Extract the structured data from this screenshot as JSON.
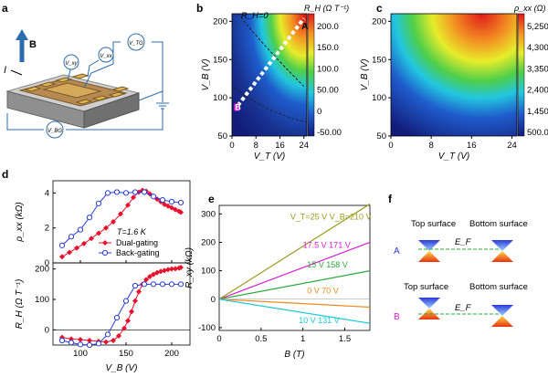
{
  "panel_labels": [
    "a",
    "b",
    "c",
    "d",
    "e",
    "f"
  ],
  "panel_a": {
    "b_label": "B",
    "i_label": "I",
    "meters": [
      "V_xy",
      "V_xx",
      "V_TG",
      "V_BG"
    ]
  },
  "chart_data": [
    {
      "id": "b",
      "type": "heatmap",
      "xlabel": "V_T (V)",
      "ylabel": "V_B (V)",
      "xlim": [
        0,
        25
      ],
      "ylim": [
        50,
        210
      ],
      "xticks": [
        0,
        8,
        16,
        24
      ],
      "yticks": [
        50,
        100,
        150,
        200
      ],
      "colorbar": {
        "label": "R_H (Ω T⁻¹)",
        "ticks": [
          "200.0",
          "150.0",
          "100.0",
          "50.00",
          "0",
          "-50.00"
        ],
        "range": [
          -50,
          220
        ],
        "colors": [
          "#131c7a",
          "#1f5ccc",
          "#22c7e0",
          "#4fcf4a",
          "#e8ec2a",
          "#f39222",
          "#e01a1a"
        ]
      },
      "annotations": {
        "contour_label": "R_H=0",
        "point_a": "A",
        "point_b": "B",
        "path": [
          [
            2,
            90
          ],
          [
            24,
            204
          ]
        ]
      }
    },
    {
      "id": "c",
      "type": "heatmap",
      "xlabel": "V_T (V)",
      "ylabel": "V_B (V)",
      "xlim": [
        0,
        25
      ],
      "ylim": [
        50,
        210
      ],
      "xticks": [
        0,
        8,
        16,
        24
      ],
      "yticks": [
        50,
        100,
        150,
        200
      ],
      "colorbar": {
        "label": "ρ_xx (Ω)",
        "ticks": [
          "5,250",
          "4,300",
          "3,350",
          "2,400",
          "1,450",
          "500.0"
        ],
        "range": [
          500,
          5250
        ],
        "colors": [
          "#131c7a",
          "#1f5ccc",
          "#22c7e0",
          "#4fcf4a",
          "#e8ec2a",
          "#f39222",
          "#e01a1a"
        ]
      }
    },
    {
      "id": "d-top",
      "type": "line",
      "ylabel": "ρ_xx (kΩ)",
      "xlim": [
        70,
        220
      ],
      "ylim": [
        0,
        4.7
      ],
      "xticks": [
        100,
        150,
        200
      ],
      "yticks": [
        0,
        2,
        4
      ],
      "annotation": "T=1.6 K",
      "series": [
        {
          "name": "Dual-gating",
          "color": "#e8112d",
          "marker": "diamond",
          "x": [
            80,
            88,
            96,
            104,
            112,
            120,
            128,
            136,
            144,
            152,
            158,
            164,
            168,
            172,
            176,
            180,
            184,
            188,
            192,
            196,
            200,
            204,
            208,
            210
          ],
          "y": [
            0.35,
            0.6,
            0.85,
            1.1,
            1.4,
            1.7,
            2.0,
            2.35,
            2.8,
            3.3,
            3.75,
            4.05,
            4.15,
            4.1,
            3.95,
            3.8,
            3.65,
            3.5,
            3.35,
            3.25,
            3.15,
            3.05,
            2.95,
            2.9
          ]
        },
        {
          "name": "Back-gating",
          "color": "#2b3bd6",
          "marker": "open-circle",
          "x": [
            80,
            90,
            100,
            110,
            120,
            130,
            140,
            150,
            160,
            170,
            180,
            190,
            200,
            210
          ],
          "y": [
            1.0,
            1.5,
            1.9,
            2.6,
            3.4,
            4.0,
            4.05,
            4.0,
            4.05,
            4.05,
            3.8,
            3.6,
            3.5,
            3.45
          ]
        }
      ]
    },
    {
      "id": "d-bottom",
      "type": "line",
      "xlabel": "V_B (V)",
      "ylabel": "R_H (Ω T⁻¹)",
      "xlim": [
        70,
        220
      ],
      "ylim": [
        -50,
        220
      ],
      "xticks": [
        100,
        150,
        200
      ],
      "yticks": [
        0,
        100,
        200
      ],
      "series": [
        {
          "name": "Dual-gating",
          "color": "#e8112d",
          "marker": "diamond",
          "x": [
            80,
            90,
            100,
            110,
            120,
            128,
            136,
            142,
            148,
            152,
            156,
            160,
            164,
            168,
            172,
            176,
            180,
            184,
            188,
            192,
            196,
            200,
            204,
            208,
            210
          ],
          "y": [
            -25,
            -30,
            -32,
            -35,
            -38,
            -40,
            -35,
            -20,
            5,
            30,
            60,
            95,
            125,
            150,
            165,
            175,
            182,
            188,
            192,
            195,
            198,
            200,
            201,
            203,
            205
          ],
          "with_line": true
        },
        {
          "name": "Back-gating",
          "color": "#2b3bd6",
          "marker": "open-circle",
          "x": [
            80,
            90,
            100,
            110,
            120,
            130,
            140,
            150,
            160,
            170,
            180,
            190,
            200,
            210
          ],
          "y": [
            -35,
            -42,
            -48,
            -50,
            -45,
            -15,
            40,
            95,
            145,
            150,
            150,
            150,
            150,
            150
          ]
        }
      ]
    },
    {
      "id": "e",
      "type": "line",
      "xlabel": "B (T)",
      "ylabel": "R_xy (kΩ)",
      "xlim": [
        0,
        1.8
      ],
      "ylim": [
        -110,
        330
      ],
      "xticks": [
        0.0,
        0.5,
        1.0,
        1.5
      ],
      "yticks": [
        -100,
        0,
        100,
        200,
        300
      ],
      "series": [
        {
          "name": "V_T=25 V  V_B=210 V",
          "color": "#9b9b1f",
          "x": [
            0,
            1.8
          ],
          "y": [
            0,
            335
          ]
        },
        {
          "name": "17.5 V  171 V",
          "color": "#d81ad0",
          "x": [
            0,
            1.8
          ],
          "y": [
            0,
            200
          ]
        },
        {
          "name": "15 V  158 V",
          "color": "#2da83a",
          "x": [
            0,
            1.8
          ],
          "y": [
            0,
            100
          ]
        },
        {
          "name": "0 V  70 V",
          "color": "#f08a1c",
          "x": [
            0,
            1.8
          ],
          "y": [
            0,
            -28
          ]
        },
        {
          "name": "10 V  131 V",
          "color": "#1ec7d6",
          "x": [
            0,
            1.8
          ],
          "y": [
            0,
            -85
          ]
        }
      ]
    }
  ],
  "panel_f": {
    "top_label": "Top surface",
    "bottom_label": "Bottom surface",
    "row_a": "A",
    "row_b": "B",
    "ef": "E_F",
    "row_a_color": "#2b3bd6",
    "row_b_color": "#d81ad0"
  }
}
